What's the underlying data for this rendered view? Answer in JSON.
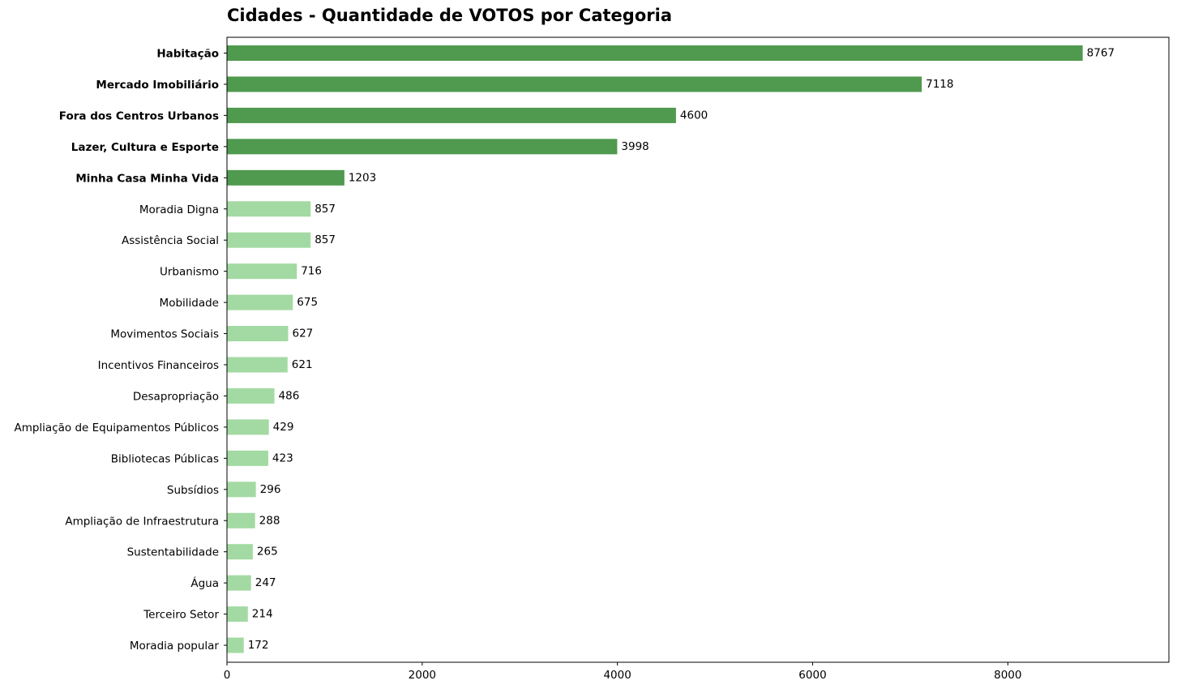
{
  "chart_data": {
    "type": "bar",
    "orientation": "horizontal",
    "title": "Cidades - Quantidade de VOTOS por Categoria",
    "xlabel": "",
    "ylabel": "",
    "xlim": [
      0,
      9650
    ],
    "xticks": [
      "0",
      "2000",
      "4000",
      "6000",
      "8000"
    ],
    "grid": false,
    "colors": {
      "highlight": "#4f9a4e",
      "normal": "#a3daa3"
    },
    "highlight_count": 5,
    "categories": [
      "Habitação",
      "Mercado Imobiliário",
      "Fora dos Centros Urbanos",
      "Lazer, Cultura e Esporte",
      "Minha Casa Minha Vida",
      "Moradia Digna",
      "Assistência Social",
      "Urbanismo",
      "Mobilidade",
      "Movimentos Sociais",
      "Incentivos Financeiros",
      "Desapropriação",
      "Ampliação de Equipamentos Públicos",
      "Bibliotecas Públicas",
      "Subsídios",
      "Ampliação de Infraestrutura",
      "Sustentabilidade",
      "Água",
      "Terceiro Setor",
      "Moradia popular"
    ],
    "values": [
      8767,
      7118,
      4600,
      3998,
      1203,
      857,
      857,
      716,
      675,
      627,
      621,
      486,
      429,
      423,
      296,
      288,
      265,
      247,
      214,
      172
    ]
  }
}
